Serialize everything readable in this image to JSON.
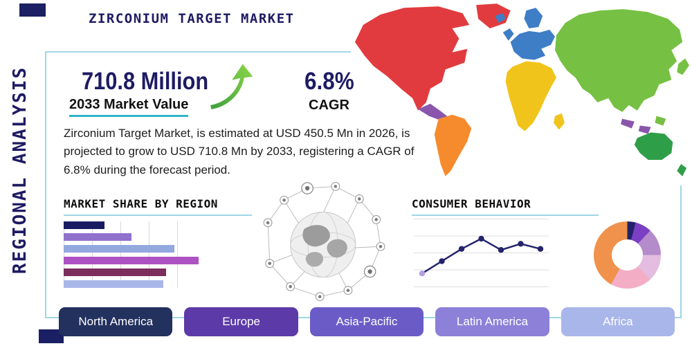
{
  "header": {
    "title": "ZIRCONIUM TARGET MARKET",
    "vertical_label": "REGIONAL ANALYSIS"
  },
  "highlights": {
    "market_value": "710.8 Million",
    "market_value_label": "2033 Market Value",
    "cagr_value": "6.8%",
    "cagr_label": "CAGR",
    "description": "Zirconium Target Market, is estimated at USD 450.5 Mn in 2026, is projected to grow to USD 710.8 Mn by 2033, registering a CAGR of 6.8% during the forecast period."
  },
  "sections": {
    "market_share_title": "MARKET SHARE BY REGION",
    "consumer_behavior_title": "CONSUMER BEHAVIOR"
  },
  "chart_data": [
    {
      "type": "bar",
      "orientation": "horizontal",
      "title": "MARKET SHARE BY REGION",
      "values": [
        29,
        48,
        78,
        95,
        72,
        70
      ],
      "max": 100,
      "colors": [
        "#191b62",
        "#9071cc",
        "#94a8e0",
        "#ad52c3",
        "#7c2d5c",
        "#a9b6e8"
      ],
      "grid": "vertical"
    },
    {
      "type": "line",
      "title": "CONSUMER BEHAVIOR",
      "x": [
        1,
        2,
        3,
        4,
        5,
        6,
        7
      ],
      "y": [
        1.0,
        2.2,
        3.4,
        4.4,
        3.3,
        3.9,
        3.4
      ],
      "ymax": 5,
      "line_color": "#23246b",
      "point_color": "#23246b",
      "first_point_color": "#b3a0e0",
      "grid": "horizontal"
    },
    {
      "type": "pie",
      "variant": "donut",
      "slices": [
        {
          "value": 4,
          "color": "#232268"
        },
        {
          "value": 8,
          "color": "#7b3fc4"
        },
        {
          "value": 13,
          "color": "#b48ccb"
        },
        {
          "value": 13,
          "color": "#e3bce0"
        },
        {
          "value": 20,
          "color": "#f3aec6"
        },
        {
          "value": 42,
          "color": "#f0924c"
        }
      ]
    }
  ],
  "map": {
    "region_colors": {
      "north_america": "#e23b3f",
      "greenland": "#e23b3f",
      "central_america": "#8a56ad",
      "south_america": "#f68b2e",
      "europe": "#3e7ec6",
      "africa": "#f0c41b",
      "madagascar": "#f0c41b",
      "asia": "#76c043",
      "islands": "#8a56ad",
      "australia": "#2f9e49"
    }
  },
  "region_buttons": [
    {
      "label": "North America",
      "color": "#22315e"
    },
    {
      "label": "Europe",
      "color": "#5c3aa8"
    },
    {
      "label": "Asia-Pacific",
      "color": "#6a5bc7"
    },
    {
      "label": "Latin America",
      "color": "#8d80d8"
    },
    {
      "label": "Africa",
      "color": "#a9b6ea"
    }
  ],
  "accents": {
    "teal_line": "#2fb4c9",
    "frame_border": "#9fd6e3",
    "navy": "#1e1b63",
    "arrow_green": "#57b33e"
  }
}
